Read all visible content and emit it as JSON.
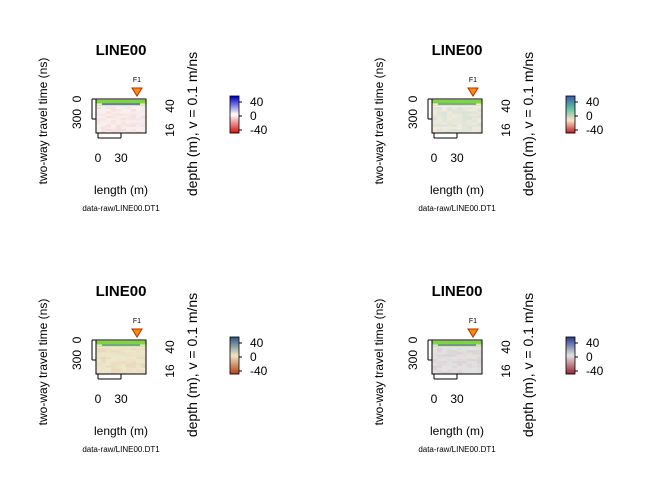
{
  "chart_data": [
    {
      "type": "heatmap",
      "title": "LINE00",
      "xlabel": "length (m)",
      "ylabel": "two-way travel time (ns)",
      "ylabel_right": "depth (m),   v = 0.1 m/ns",
      "source": "data-raw/LINE00.DT1",
      "marker_label": "F1",
      "x_ticks": [
        "0",
        "30"
      ],
      "y_ticks": [
        "0",
        "300"
      ],
      "depth_ticks": [
        "40",
        "16"
      ],
      "colorbar_ticks": [
        "40",
        "0",
        "-40"
      ],
      "colorbar_range": [
        -40,
        40
      ],
      "palette": [
        "#d7191c",
        "#ffffff",
        "#0000cd"
      ],
      "panel_bg": "#f6ece8"
    },
    {
      "type": "heatmap",
      "title": "LINE00",
      "xlabel": "length (m)",
      "ylabel": "two-way travel time (ns)",
      "ylabel_right": "depth (m),   v = 0.1 m/ns",
      "source": "data-raw/LINE00.DT1",
      "marker_label": "F1",
      "x_ticks": [
        "0",
        "30"
      ],
      "y_ticks": [
        "0",
        "300"
      ],
      "depth_ticks": [
        "40",
        "16"
      ],
      "colorbar_ticks": [
        "40",
        "0",
        "-40"
      ],
      "colorbar_range": [
        -40,
        40
      ],
      "palette": [
        "#c0282d",
        "#fbe3c6",
        "#61c0a6",
        "#3f5ea8"
      ],
      "panel_bg": "#f7f0ea"
    },
    {
      "type": "heatmap",
      "title": "LINE00",
      "xlabel": "length (m)",
      "ylabel": "two-way travel time (ns)",
      "ylabel_right": "depth (m),   v = 0.1 m/ns",
      "source": "data-raw/LINE00.DT1",
      "marker_label": "F1",
      "x_ticks": [
        "0",
        "30"
      ],
      "y_ticks": [
        "0",
        "300"
      ],
      "depth_ticks": [
        "40",
        "16"
      ],
      "colorbar_ticks": [
        "40",
        "0",
        "-40"
      ],
      "colorbar_range": [
        -40,
        40
      ],
      "palette": [
        "#b5481c",
        "#efe6c5",
        "#2d5d86"
      ],
      "panel_bg": "#efe8cf"
    },
    {
      "type": "heatmap",
      "title": "LINE00",
      "xlabel": "length (m)",
      "ylabel": "two-way travel time (ns)",
      "ylabel_right": "depth (m),   v = 0.1 m/ns",
      "source": "data-raw/LINE00.DT1",
      "marker_label": "F1",
      "x_ticks": [
        "0",
        "30"
      ],
      "y_ticks": [
        "0",
        "300"
      ],
      "depth_ticks": [
        "40",
        "16"
      ],
      "colorbar_ticks": [
        "40",
        "0",
        "-40"
      ],
      "colorbar_range": [
        -40,
        40
      ],
      "palette": [
        "#9a2a3c",
        "#e2e2e2",
        "#2b3f8e"
      ],
      "panel_bg": "#e3e3e3"
    }
  ]
}
